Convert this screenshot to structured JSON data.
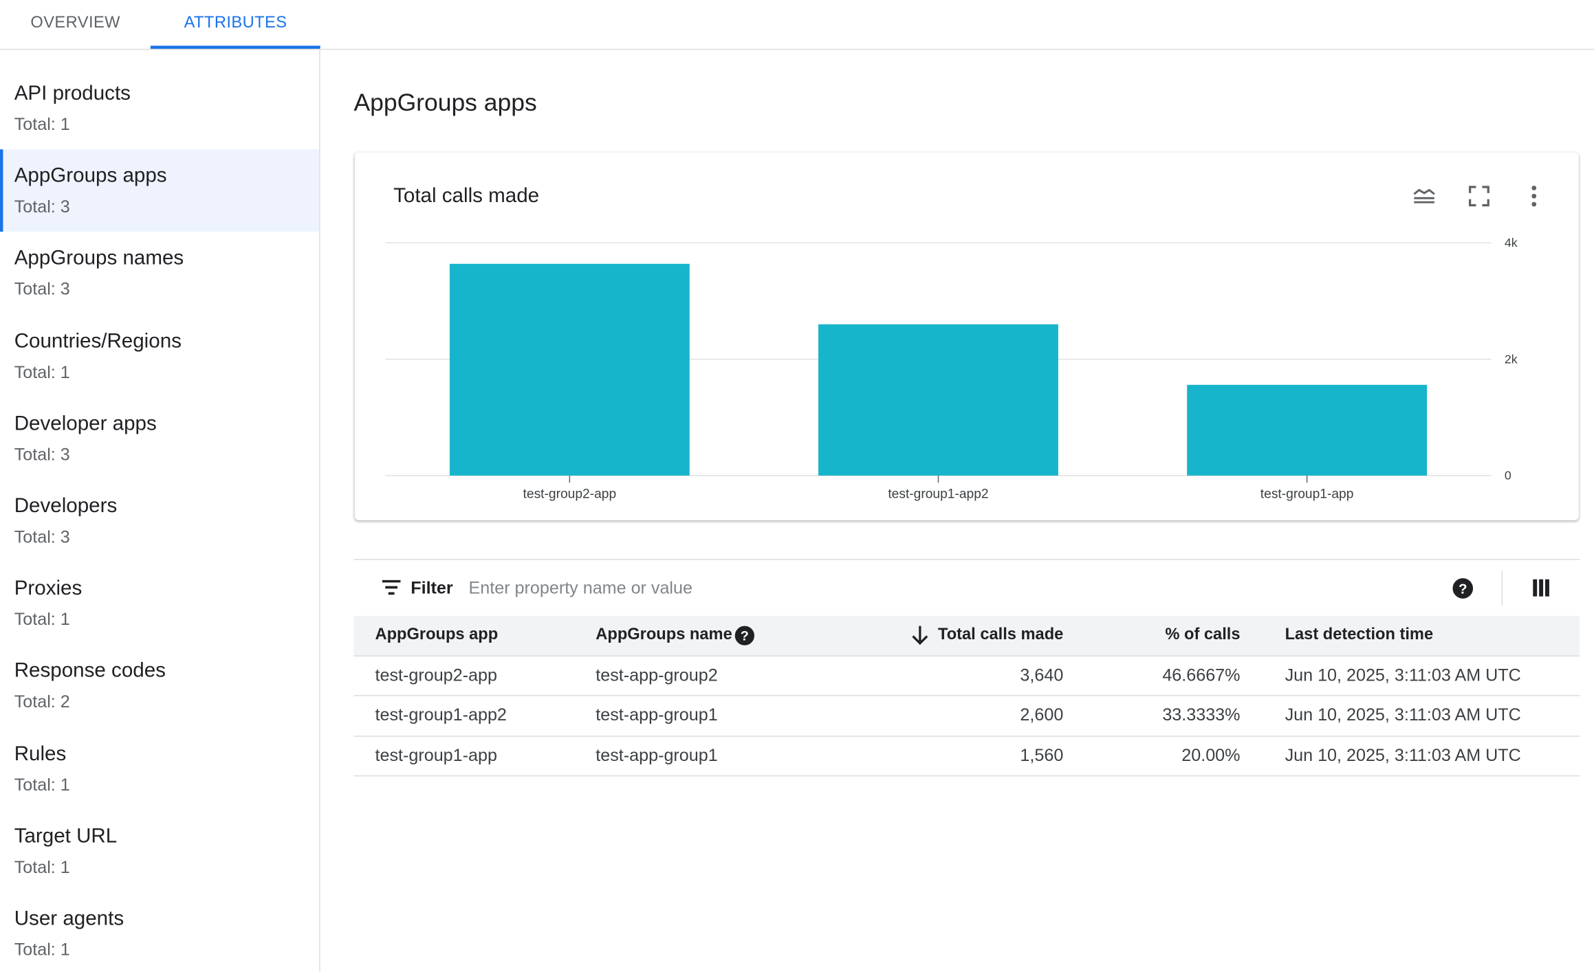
{
  "tabs": [
    "OVERVIEW",
    "ATTRIBUTES"
  ],
  "sidebar": {
    "items": [
      {
        "name": "API products",
        "total": "Total: 1"
      },
      {
        "name": "AppGroups apps",
        "total": "Total: 3"
      },
      {
        "name": "AppGroups names",
        "total": "Total: 3"
      },
      {
        "name": "Countries/Regions",
        "total": "Total: 1"
      },
      {
        "name": "Developer apps",
        "total": "Total: 3"
      },
      {
        "name": "Developers",
        "total": "Total: 3"
      },
      {
        "name": "Proxies",
        "total": "Total: 1"
      },
      {
        "name": "Response codes",
        "total": "Total: 2"
      },
      {
        "name": "Rules",
        "total": "Total: 1"
      },
      {
        "name": "Target URL",
        "total": "Total: 1"
      },
      {
        "name": "User agents",
        "total": "Total: 1"
      }
    ]
  },
  "heading": "AppGroups apps",
  "chart_data": {
    "type": "bar",
    "title": "Total calls made",
    "categories": [
      "test-group2-app",
      "test-group1-app2",
      "test-group1-app"
    ],
    "values": [
      3640,
      2600,
      1560
    ],
    "color": "#17b5cb",
    "ylim": [
      0,
      4000
    ],
    "yticks": [
      0,
      {
        "value": 2000,
        "label": "2k"
      },
      {
        "value": 4000,
        "label": "4k"
      }
    ],
    "grid": true
  },
  "filter": {
    "label": "Filter",
    "placeholder": "Enter property name or value"
  },
  "table": {
    "columns": [
      "AppGroups app",
      "AppGroups name",
      "Total calls made",
      "% of calls",
      "Last detection time"
    ],
    "rows": [
      [
        "test-group2-app",
        "test-app-group2",
        "3,640",
        "46.6667%",
        "Jun 10, 2025, 3:11:03 AM UTC"
      ],
      [
        "test-group1-app2",
        "test-app-group1",
        "2,600",
        "33.3333%",
        "Jun 10, 2025, 3:11:03 AM UTC"
      ],
      [
        "test-group1-app",
        "test-app-group1",
        "1,560",
        "20.00%",
        "Jun 10, 2025, 3:11:03 AM UTC"
      ]
    ]
  }
}
